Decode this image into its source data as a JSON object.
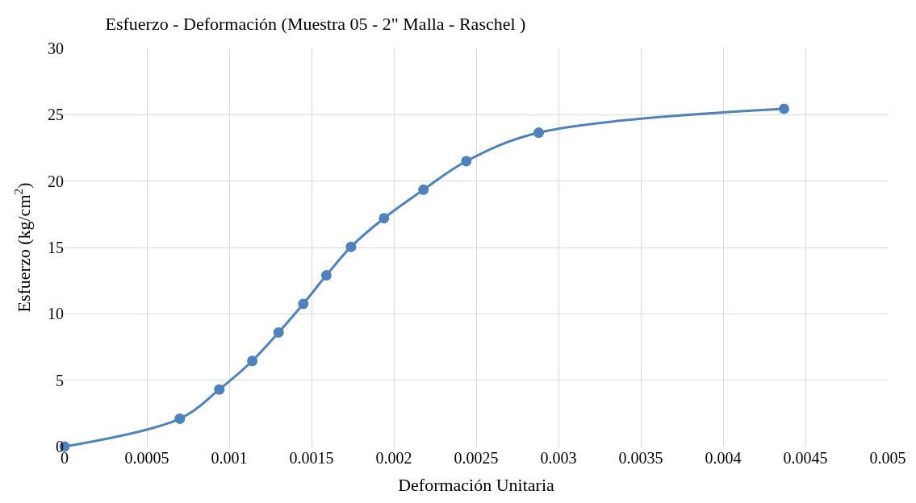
{
  "chart_data": {
    "type": "line",
    "title": "Esfuerzo - Deformación (Muestra 05 - 2\" Malla - Raschel )",
    "xlabel": "Deformación Unitaria",
    "ylabel": "Esfuerzo (kg/cm$^{2}$)",
    "x": [
      0,
      0.0007,
      0.00094,
      0.00114,
      0.0013,
      0.00145,
      0.00159,
      0.00174,
      0.00194,
      0.00218,
      0.00244,
      0.00288,
      0.00437
    ],
    "series": [
      {
        "color": "#4f81bd",
        "values": [
          0,
          2.1,
          4.3,
          6.45,
          8.6,
          10.75,
          12.9,
          15.05,
          17.2,
          19.35,
          21.5,
          23.65,
          25.45
        ]
      }
    ],
    "xlim": [
      0,
      0.005
    ],
    "xticks": [
      0,
      0.0005,
      0.001,
      0.0015,
      0.002,
      0.0025,
      0.003,
      0.0035,
      0.004,
      0.0045,
      0.005
    ],
    "ylim": [
      0,
      30
    ],
    "yticks": [
      0,
      5,
      10,
      15,
      20,
      25,
      30
    ],
    "grid": true,
    "marker": "circle",
    "line_style": "solid"
  }
}
